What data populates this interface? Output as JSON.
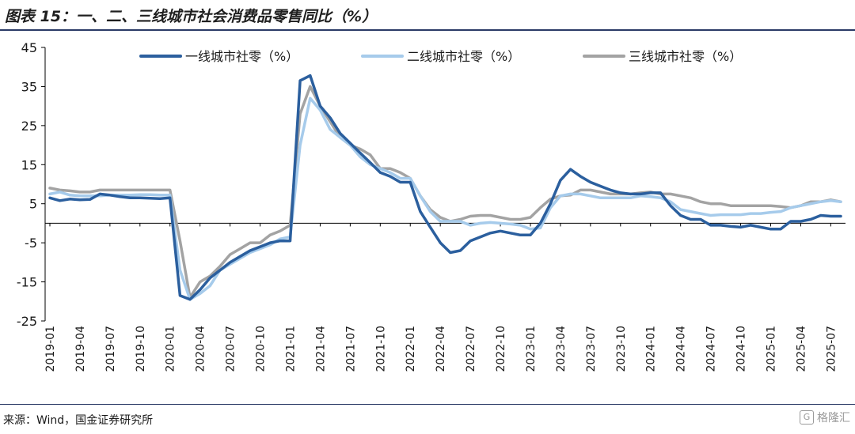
{
  "title": "图表 15：一、二、三线城市社会消费品零售同比（%）",
  "source": "来源：Wind，国金证券研究所",
  "watermark": "格隆汇",
  "chart_data": {
    "type": "line",
    "ylim": [
      -25,
      45
    ],
    "yticks": [
      45,
      35,
      25,
      15,
      5,
      -5,
      -15,
      -25
    ],
    "grid": false,
    "legend_position": "top",
    "xticks": [
      "2019-01",
      "2019-04",
      "2019-07",
      "2019-10",
      "2020-01",
      "2020-04",
      "2020-07",
      "2020-10",
      "2021-01",
      "2021-04",
      "2021-07",
      "2021-10",
      "2022-01",
      "2022-04",
      "2022-07",
      "2022-10",
      "2023-01",
      "2023-04",
      "2023-07",
      "2023-10",
      "2024-01",
      "2024-04",
      "2024-07",
      "2024-10",
      "2025-01",
      "2025-04",
      "2025-07"
    ],
    "x_start": "2019-01",
    "series": [
      {
        "name": "一线城市社零（%）",
        "color": "#2b5f9e",
        "width": 3.5,
        "values": [
          6.5,
          5.8,
          6.2,
          6,
          6.1,
          7.5,
          7.2,
          6.8,
          6.5,
          6.5,
          6.4,
          6.3,
          6.5,
          -18.5,
          -19.5,
          -17,
          -14,
          -12,
          -10,
          -8.5,
          -7,
          -6,
          -5,
          -4.5,
          -4.5,
          36.5,
          37.8,
          30,
          27,
          23,
          20.5,
          18,
          15.5,
          13,
          12,
          10.5,
          10.5,
          3,
          -1,
          -5,
          -7.5,
          -7,
          -4.5,
          -3.5,
          -2.5,
          -2,
          -2.5,
          -3,
          -3,
          0,
          5,
          11,
          13.8,
          12,
          10.5,
          9.5,
          8.5,
          7.8,
          7.5,
          7.5,
          7.8,
          7.8,
          4.5,
          2,
          1,
          1,
          -0.5,
          -0.5,
          -0.8,
          -1,
          -0.5,
          -1,
          -1.5,
          -1.5,
          0.5,
          0.5,
          1,
          2,
          1.8,
          1.8
        ]
      },
      {
        "name": "二线城市社零（%）",
        "color": "#a6cbeb",
        "width": 3.5,
        "values": [
          7.5,
          8,
          7.2,
          7,
          7,
          7,
          7.2,
          7.2,
          7.2,
          7.3,
          7.3,
          7.2,
          7.2,
          -12,
          -19.5,
          -18,
          -16,
          -12,
          -10.5,
          -9,
          -7.5,
          -6.5,
          -5.5,
          -4,
          -3.5,
          20,
          32,
          29,
          24,
          22,
          20,
          17,
          15,
          14,
          13,
          11.5,
          11.5,
          7,
          3,
          0.5,
          0.5,
          0.5,
          -0.5,
          0,
          0.2,
          0,
          -0.2,
          -0.5,
          -1.5,
          -1.2,
          4,
          7,
          7.5,
          7.5,
          7,
          6.5,
          6.5,
          6.5,
          6.5,
          7,
          6.8,
          6.5,
          5.5,
          3.5,
          3,
          2.5,
          2,
          2.2,
          2.2,
          2.2,
          2.5,
          2.5,
          2.8,
          3,
          4,
          4.5,
          5,
          5.5,
          5.8,
          5.5
        ]
      },
      {
        "name": "三线城市社零（%）",
        "color": "#a3a3a3",
        "width": 3.5,
        "values": [
          9,
          8.5,
          8.3,
          8,
          8,
          8.5,
          8.5,
          8.5,
          8.5,
          8.5,
          8.5,
          8.5,
          8.5,
          -4.5,
          -19,
          -15,
          -13.5,
          -11,
          -8,
          -6.5,
          -5,
          -5,
          -3,
          -2,
          -0.5,
          28,
          35,
          30,
          26,
          22,
          20,
          19,
          17.5,
          14,
          14,
          13,
          11.5,
          7,
          3.5,
          1.5,
          0.5,
          1,
          1.8,
          2,
          2,
          1.5,
          1,
          1,
          1.5,
          4,
          6.2,
          7,
          7.2,
          8.5,
          8.5,
          8,
          7.5,
          7.5,
          7.5,
          7.8,
          8,
          7.5,
          7.5,
          7,
          6.5,
          5.5,
          5,
          5,
          4.5,
          4.5,
          4.5,
          4.5,
          4.5,
          4.3,
          4,
          4.5,
          5.5,
          5.5,
          6,
          5.5
        ]
      }
    ]
  }
}
